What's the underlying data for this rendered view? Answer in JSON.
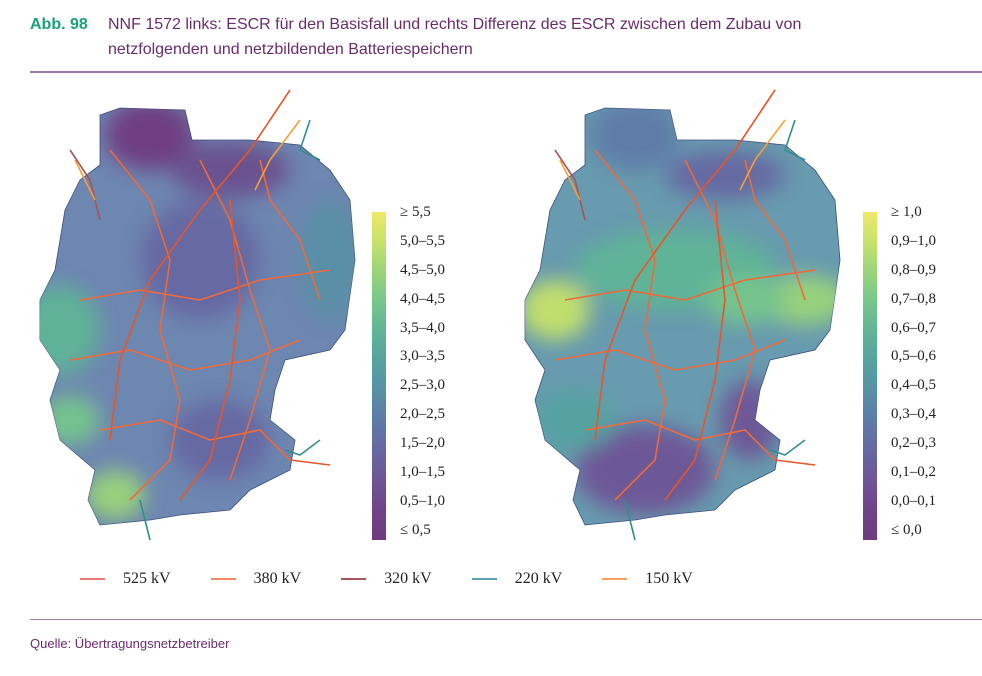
{
  "figure": {
    "label": "Abb. 98",
    "title": "NNF 1572 links: ESCR für den Basisfall und rechts Differenz des ESCR zwischen dem Zubau von netzfolgenden und netzbildenden Batteriespeichern"
  },
  "left_map": {
    "colorbar": {
      "colors": [
        "#f0e86a",
        "#c6e26a",
        "#9ad47a",
        "#76c68c",
        "#5fb596",
        "#55a3a0",
        "#5890a6",
        "#5e7aa8",
        "#6667a2",
        "#6e5496",
        "#6f4388",
        "#6f3a80"
      ],
      "labels": [
        "≥ 5,5",
        "5,0–5,5",
        "4,5–5,0",
        "4,0–4,5",
        "3,5–4,0",
        "3,0–3,5",
        "2,5–3,0",
        "2,0–2,5",
        "1,5–2,0",
        "1,0–1,5",
        "0,5–1,0",
        "≤ 0,5"
      ]
    }
  },
  "right_map": {
    "colorbar": {
      "colors": [
        "#f0e86a",
        "#c6e26a",
        "#9ad47a",
        "#76c68c",
        "#5fb596",
        "#55a3a0",
        "#5890a6",
        "#5e7aa8",
        "#6667a2",
        "#6e5496",
        "#6f4388",
        "#6f3a80"
      ],
      "labels": [
        "≥ 1,0",
        "0,9–1,0",
        "0,8–0,9",
        "0,7–0,8",
        "0,6–0,7",
        "0,5–0,6",
        "0,4–0,5",
        "0,3–0,4",
        "0,2–0,3",
        "0,1–0,2",
        "0,0–0,1",
        "≤ 0,0"
      ]
    }
  },
  "legend": [
    {
      "label": "525 kV",
      "color": "#e8787a"
    },
    {
      "label": "380 kV",
      "color": "#f08a6a"
    },
    {
      "label": "320 kV",
      "color": "#a8545a"
    },
    {
      "label": "220 kV",
      "color": "#5aa0b4"
    },
    {
      "label": "150 kV",
      "color": "#f7a060"
    }
  ],
  "source": "Quelle: Übertragungsnetzbetreiber"
}
